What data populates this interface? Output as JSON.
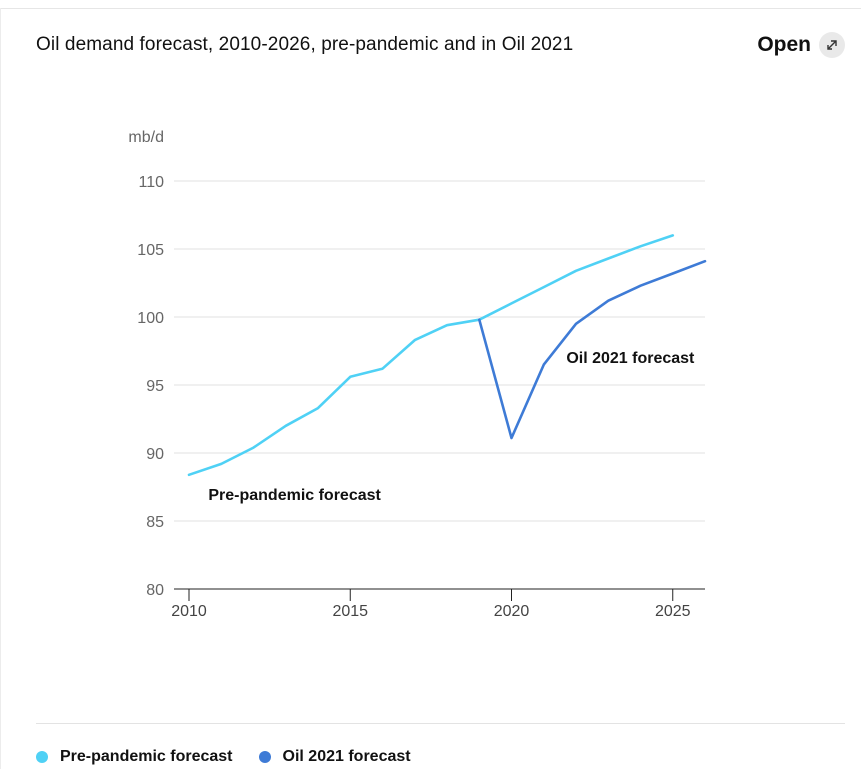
{
  "header": {
    "title": "Oil demand forecast, 2010-2026, pre-pandemic and in Oil 2021",
    "open_label": "Open",
    "open_icon": "external-link-icon"
  },
  "chart_data": {
    "type": "line",
    "ylabel": "mb/d",
    "xlim": [
      2010,
      2026
    ],
    "ylim": [
      80,
      110
    ],
    "x_ticks": [
      2010,
      2015,
      2020,
      2025
    ],
    "y_ticks": [
      80,
      85,
      90,
      95,
      100,
      105,
      110
    ],
    "grid": "horizontal",
    "series": [
      {
        "name": "Pre-pandemic forecast",
        "color": "#4fd1f5",
        "x": [
          2010,
          2011,
          2012,
          2013,
          2014,
          2015,
          2016,
          2017,
          2018,
          2019,
          2020,
          2021,
          2022,
          2023,
          2024,
          2025
        ],
        "values": [
          88.4,
          89.2,
          90.4,
          92.0,
          93.3,
          95.6,
          96.2,
          98.3,
          99.4,
          99.8,
          101.0,
          102.2,
          103.4,
          104.3,
          105.2,
          106.0
        ]
      },
      {
        "name": "Oil 2021 forecast",
        "color": "#3e7bd6",
        "x": [
          2019,
          2020,
          2021,
          2022,
          2023,
          2024,
          2025,
          2026
        ],
        "values": [
          99.8,
          91.1,
          96.5,
          99.5,
          101.2,
          102.3,
          103.2,
          104.1
        ]
      }
    ],
    "annotations": [
      {
        "text": "Pre-pandemic forecast",
        "x": 2010.6,
        "y": 86.9
      },
      {
        "text": "Oil 2021 forecast",
        "x": 2021.7,
        "y": 97.0
      }
    ],
    "legend": {
      "position": "bottom-left",
      "items": [
        {
          "label": "Pre-pandemic forecast",
          "color": "#4fd1f5"
        },
        {
          "label": "Oil 2021 forecast",
          "color": "#3e7bd6"
        }
      ]
    }
  }
}
